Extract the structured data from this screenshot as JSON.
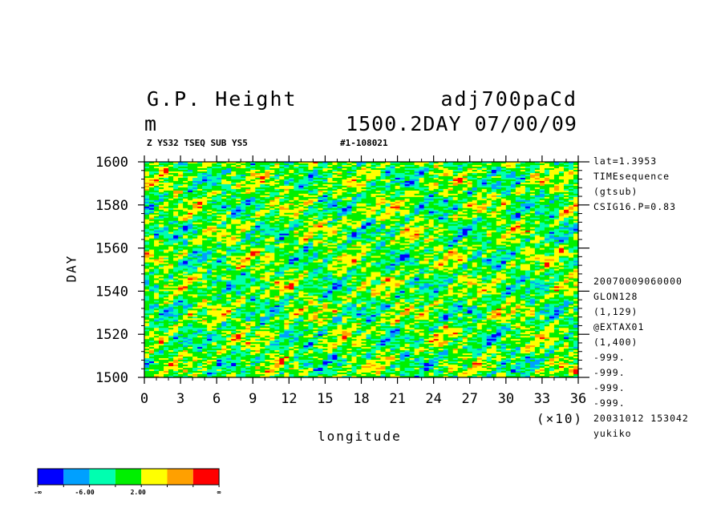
{
  "header": {
    "title_left_1": "G.P. Height",
    "title_left_2": "m",
    "title_right_1": "adj700paCd",
    "title_right_2": "1500.2DAY 07/00/09",
    "subtitle_left": "Z YS32 TSEQ SUB YS5",
    "subtitle_right": "#1-108021"
  },
  "side_info": [
    "lat=1.3953",
    "TIMEsequence",
    "(gtsub)",
    "CSIG16.P=0.83",
    "20070009060000",
    "GLON128",
    "(1,129)",
    "@EXTAX01",
    "(1,400)",
    "-999.",
    "-999.",
    "-999.",
    "-999.",
    "20031012 153042",
    "yukiko"
  ],
  "colorbar": {
    "colors": [
      "#0000ff",
      "#00a0ff",
      "#00ffb0",
      "#00f000",
      "#ffff00",
      "#ffa000",
      "#ff0000"
    ],
    "labels": [
      "-∞",
      "-6.00",
      "2.00",
      "∞"
    ]
  },
  "chart_data": {
    "type": "heatmap",
    "title": "G.P. Height",
    "units": "m",
    "xlabel": "longitude",
    "ylabel": "DAY",
    "x_multiplier_label": "(×10)",
    "xlim": [
      0,
      36
    ],
    "ylim": [
      1500,
      1600
    ],
    "x_ticks": [
      "0",
      "3",
      "6",
      "9",
      "12",
      "15",
      "18",
      "21",
      "24",
      "27",
      "30",
      "33",
      "36"
    ],
    "y_ticks": [
      "1500",
      "1520",
      "1540",
      "1560",
      "1580",
      "1600"
    ],
    "x_tick_values": [
      0,
      3,
      6,
      9,
      12,
      15,
      18,
      21,
      24,
      27,
      30,
      33,
      36
    ],
    "y_tick_values": [
      1500,
      1520,
      1540,
      1560,
      1580,
      1600
    ],
    "contour_levels": [
      "-∞",
      "-6.00",
      "2.00",
      "∞"
    ]
  }
}
